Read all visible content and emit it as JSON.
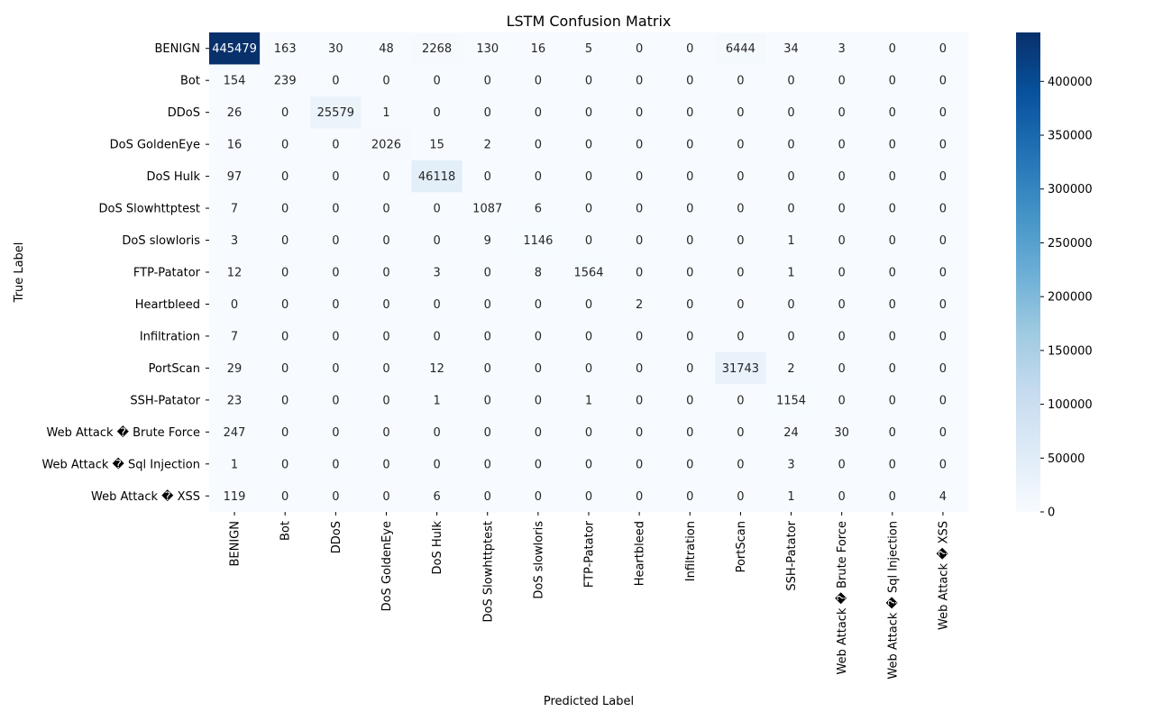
{
  "chart_data": {
    "type": "heatmap",
    "title": "LSTM Confusion Matrix",
    "xlabel": "Predicted Label",
    "ylabel": "True Label",
    "x_categories": [
      "BENIGN",
      "Bot",
      "DDoS",
      "DoS GoldenEye",
      "DoS Hulk",
      "DoS Slowhttptest",
      "DoS slowloris",
      "FTP-Patator",
      "Heartbleed",
      "Infiltration",
      "PortScan",
      "SSH-Patator",
      "Web Attack � Brute Force",
      "Web Attack � Sql Injection",
      "Web Attack � XSS"
    ],
    "y_categories": [
      "BENIGN",
      "Bot",
      "DDoS",
      "DoS GoldenEye",
      "DoS Hulk",
      "DoS Slowhttptest",
      "DoS slowloris",
      "FTP-Patator",
      "Heartbleed",
      "Infiltration",
      "PortScan",
      "SSH-Patator",
      "Web Attack � Brute Force",
      "Web Attack � Sql Injection",
      "Web Attack � XSS"
    ],
    "values": [
      [
        445479,
        163,
        30,
        48,
        2268,
        130,
        16,
        5,
        0,
        0,
        6444,
        34,
        3,
        0,
        0
      ],
      [
        154,
        239,
        0,
        0,
        0,
        0,
        0,
        0,
        0,
        0,
        0,
        0,
        0,
        0,
        0
      ],
      [
        26,
        0,
        25579,
        1,
        0,
        0,
        0,
        0,
        0,
        0,
        0,
        0,
        0,
        0,
        0
      ],
      [
        16,
        0,
        0,
        2026,
        15,
        2,
        0,
        0,
        0,
        0,
        0,
        0,
        0,
        0,
        0
      ],
      [
        97,
        0,
        0,
        0,
        46118,
        0,
        0,
        0,
        0,
        0,
        0,
        0,
        0,
        0,
        0
      ],
      [
        7,
        0,
        0,
        0,
        0,
        1087,
        6,
        0,
        0,
        0,
        0,
        0,
        0,
        0,
        0
      ],
      [
        3,
        0,
        0,
        0,
        0,
        9,
        1146,
        0,
        0,
        0,
        0,
        1,
        0,
        0,
        0
      ],
      [
        12,
        0,
        0,
        0,
        3,
        0,
        8,
        1564,
        0,
        0,
        0,
        1,
        0,
        0,
        0
      ],
      [
        0,
        0,
        0,
        0,
        0,
        0,
        0,
        0,
        2,
        0,
        0,
        0,
        0,
        0,
        0
      ],
      [
        7,
        0,
        0,
        0,
        0,
        0,
        0,
        0,
        0,
        0,
        0,
        0,
        0,
        0,
        0
      ],
      [
        29,
        0,
        0,
        0,
        12,
        0,
        0,
        0,
        0,
        0,
        31743,
        2,
        0,
        0,
        0
      ],
      [
        23,
        0,
        0,
        0,
        1,
        0,
        0,
        1,
        0,
        0,
        0,
        1154,
        0,
        0,
        0
      ],
      [
        247,
        0,
        0,
        0,
        0,
        0,
        0,
        0,
        0,
        0,
        0,
        24,
        30,
        0,
        0
      ],
      [
        1,
        0,
        0,
        0,
        0,
        0,
        0,
        0,
        0,
        0,
        0,
        3,
        0,
        0,
        0
      ],
      [
        119,
        0,
        0,
        0,
        6,
        0,
        0,
        0,
        0,
        0,
        0,
        1,
        0,
        0,
        4
      ]
    ],
    "value_range": [
      0,
      445479
    ],
    "colormap": "Blues",
    "colorbar_ticks": [
      0,
      50000,
      100000,
      150000,
      200000,
      250000,
      300000,
      350000,
      400000
    ],
    "colors": {
      "low": "#f7fbff",
      "high": "#08306b"
    }
  }
}
